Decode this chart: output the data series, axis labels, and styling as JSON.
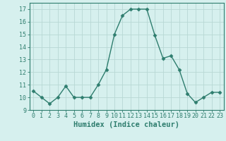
{
  "x": [
    0,
    1,
    2,
    3,
    4,
    5,
    6,
    7,
    8,
    9,
    10,
    11,
    12,
    13,
    14,
    15,
    16,
    17,
    18,
    19,
    20,
    21,
    22,
    23
  ],
  "y": [
    10.5,
    10.0,
    9.5,
    10.0,
    10.9,
    10.0,
    10.0,
    10.0,
    11.0,
    12.2,
    15.0,
    16.5,
    17.0,
    17.0,
    17.0,
    14.9,
    13.1,
    13.3,
    12.2,
    10.3,
    9.6,
    10.0,
    10.4,
    10.4
  ],
  "line_color": "#2e7d6e",
  "marker": "D",
  "marker_size": 2.5,
  "bg_color": "#d6f0ee",
  "grid_color": "#b8d8d4",
  "xlabel": "Humidex (Indice chaleur)",
  "xlim": [
    -0.5,
    23.5
  ],
  "ylim": [
    9,
    17.5
  ],
  "yticks": [
    9,
    10,
    11,
    12,
    13,
    14,
    15,
    16,
    17
  ],
  "xticks": [
    0,
    1,
    2,
    3,
    4,
    5,
    6,
    7,
    8,
    9,
    10,
    11,
    12,
    13,
    14,
    15,
    16,
    17,
    18,
    19,
    20,
    21,
    22,
    23
  ],
  "xtick_labels": [
    "0",
    "1",
    "2",
    "3",
    "4",
    "5",
    "6",
    "7",
    "8",
    "9",
    "10",
    "11",
    "12",
    "13",
    "14",
    "15",
    "16",
    "17",
    "18",
    "19",
    "20",
    "21",
    "22",
    "23"
  ],
  "font_color": "#2e7d6e",
  "tick_fontsize": 6,
  "label_fontsize": 7.5
}
